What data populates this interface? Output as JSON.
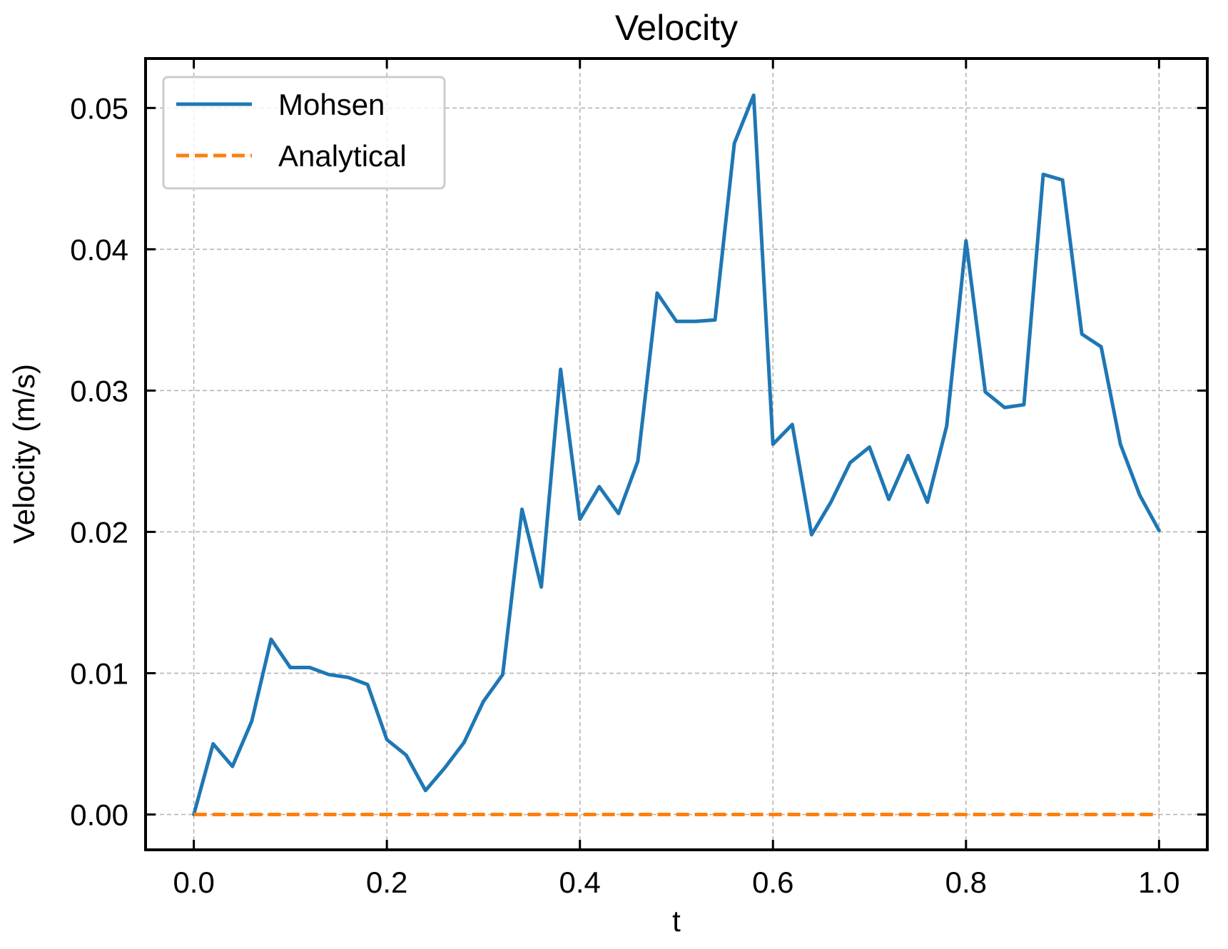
{
  "chart_data": {
    "type": "line",
    "title": "Velocity",
    "xlabel": "t",
    "ylabel": "Velocity (m/s)",
    "xlim": [
      -0.05,
      1.05
    ],
    "ylim": [
      -0.0025,
      0.0535
    ],
    "xticks": [
      0.0,
      0.2,
      0.4,
      0.6,
      0.8,
      1.0
    ],
    "xtick_labels": [
      "0.0",
      "0.2",
      "0.4",
      "0.6",
      "0.8",
      "1.0"
    ],
    "yticks": [
      0.0,
      0.01,
      0.02,
      0.03,
      0.04,
      0.05
    ],
    "ytick_labels": [
      "0.00",
      "0.01",
      "0.02",
      "0.03",
      "0.04",
      "0.05"
    ],
    "grid": true,
    "legend_position": "top-left",
    "series": [
      {
        "name": "Mohsen",
        "color": "#1f77b4",
        "style": "solid",
        "x": [
          0.0,
          0.02,
          0.04,
          0.06,
          0.08,
          0.1,
          0.12,
          0.14,
          0.16,
          0.18,
          0.2,
          0.22,
          0.24,
          0.26,
          0.28,
          0.3,
          0.32,
          0.34,
          0.36,
          0.38,
          0.4,
          0.42,
          0.44,
          0.46,
          0.48,
          0.5,
          0.52,
          0.54,
          0.56,
          0.58,
          0.6,
          0.62,
          0.64,
          0.66,
          0.68,
          0.7,
          0.72,
          0.74,
          0.76,
          0.78,
          0.8,
          0.82,
          0.84,
          0.86,
          0.88,
          0.9,
          0.92,
          0.94,
          0.96,
          0.98,
          1.0
        ],
        "y": [
          0.0,
          0.005,
          0.0034,
          0.0066,
          0.0124,
          0.0104,
          0.0104,
          0.0099,
          0.0097,
          0.0092,
          0.0053,
          0.0042,
          0.0017,
          0.0033,
          0.0051,
          0.008,
          0.0099,
          0.0216,
          0.0161,
          0.0315,
          0.0209,
          0.0232,
          0.0213,
          0.025,
          0.0369,
          0.0349,
          0.0349,
          0.035,
          0.0475,
          0.0509,
          0.0262,
          0.0276,
          0.0198,
          0.0221,
          0.0249,
          0.026,
          0.0223,
          0.0254,
          0.0221,
          0.0275,
          0.0406,
          0.0299,
          0.0288,
          0.029,
          0.0453,
          0.0449,
          0.034,
          0.0331,
          0.0262,
          0.0226,
          0.0201
        ]
      },
      {
        "name": "Analytical",
        "color": "#ff7f0e",
        "style": "dashed",
        "x": [
          0.0,
          1.0
        ],
        "y": [
          0.0,
          0.0
        ]
      }
    ]
  }
}
